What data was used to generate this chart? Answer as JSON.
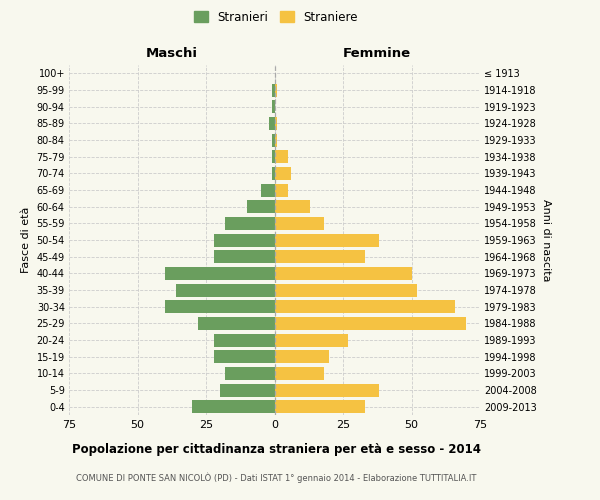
{
  "age_groups_bottom_to_top": [
    "0-4",
    "5-9",
    "10-14",
    "15-19",
    "20-24",
    "25-29",
    "30-34",
    "35-39",
    "40-44",
    "45-49",
    "50-54",
    "55-59",
    "60-64",
    "65-69",
    "70-74",
    "75-79",
    "80-84",
    "85-89",
    "90-94",
    "95-99",
    "100+"
  ],
  "birth_years_bottom_to_top": [
    "2009-2013",
    "2004-2008",
    "1999-2003",
    "1994-1998",
    "1989-1993",
    "1984-1988",
    "1979-1983",
    "1974-1978",
    "1969-1973",
    "1964-1968",
    "1959-1963",
    "1954-1958",
    "1949-1953",
    "1944-1948",
    "1939-1943",
    "1934-1938",
    "1929-1933",
    "1924-1928",
    "1919-1923",
    "1914-1918",
    "≤ 1913"
  ],
  "males_bottom_to_top": [
    30,
    20,
    18,
    22,
    22,
    28,
    40,
    36,
    40,
    22,
    22,
    18,
    10,
    5,
    1,
    1,
    1,
    2,
    1,
    1,
    0
  ],
  "females_bottom_to_top": [
    33,
    38,
    18,
    20,
    27,
    70,
    66,
    52,
    50,
    33,
    38,
    18,
    13,
    5,
    6,
    5,
    1,
    1,
    0,
    1,
    0
  ],
  "male_color": "#6a9e5e",
  "female_color": "#f5c242",
  "background_color": "#f8f8ee",
  "grid_color": "#cccccc",
  "title": "Popolazione per cittadinanza straniera per età e sesso - 2014",
  "subtitle": "COMUNE DI PONTE SAN NICOLÒ (PD) - Dati ISTAT 1° gennaio 2014 - Elaborazione TUTTITALIA.IT",
  "header_left": "Maschi",
  "header_right": "Femmine",
  "ylabel_left": "Fasce di età",
  "ylabel_right": "Anni di nascita",
  "legend_males": "Stranieri",
  "legend_females": "Straniere",
  "xlim": 75,
  "tick_step": 25
}
